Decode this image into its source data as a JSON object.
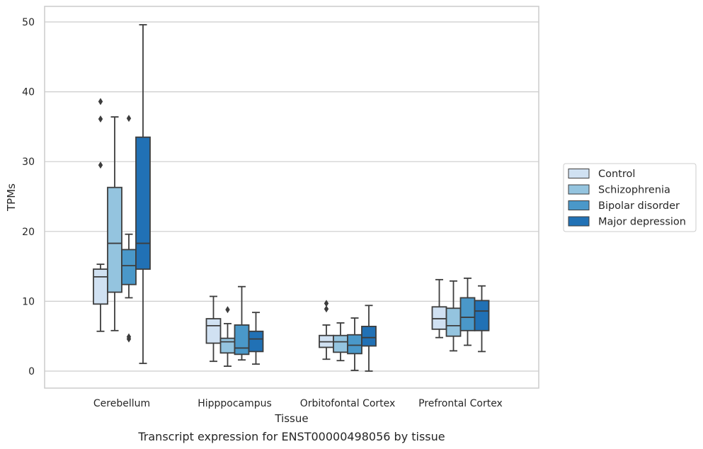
{
  "chart_data": {
    "type": "boxplot",
    "title": "",
    "caption": "Transcript expression for ENST00000498056 by tissue",
    "xlabel": "Tissue",
    "ylabel": "TPMs",
    "ylim": [
      -2.5,
      52.3
    ],
    "yticks": [
      0,
      10,
      20,
      30,
      40,
      50
    ],
    "grid": "horizontal",
    "legend_position": "right",
    "categories": [
      "Cerebellum",
      "Hipppocampus",
      "Orbitofontal Cortex",
      "Prefrontal Cortex"
    ],
    "series": [
      {
        "name": "Control",
        "color": "#d0e1f2",
        "boxes": [
          {
            "whislo": 5.7,
            "q1": 9.6,
            "med": 13.5,
            "q3": 14.6,
            "whishi": 15.3,
            "fliers": []
          },
          {
            "whislo": 1.4,
            "q1": 4.0,
            "med": 6.5,
            "q3": 7.5,
            "whishi": 10.7,
            "fliers": []
          },
          {
            "whislo": 1.7,
            "q1": 3.4,
            "med": 4.2,
            "q3": 5.1,
            "whishi": 6.6,
            "fliers": [
              8.9,
              9.7
            ]
          },
          {
            "whislo": 4.8,
            "q1": 6.0,
            "med": 7.5,
            "q3": 9.2,
            "whishi": 13.1,
            "fliers": []
          }
        ]
      },
      {
        "name": "Schizophrenia",
        "color": "#94c4df",
        "boxes": [
          {
            "whislo": 5.8,
            "q1": 11.3,
            "med": 18.3,
            "q3": 26.3,
            "whishi": 36.4,
            "fliers": []
          },
          {
            "whislo": 0.7,
            "q1": 2.6,
            "med": 4.2,
            "q3": 4.7,
            "whishi": 6.8,
            "fliers": [
              8.8
            ]
          },
          {
            "whislo": 1.5,
            "q1": 2.7,
            "med": 4.2,
            "q3": 5.1,
            "whishi": 6.9,
            "fliers": []
          },
          {
            "whislo": 2.9,
            "q1": 5.0,
            "med": 6.5,
            "q3": 9.0,
            "whishi": 12.9,
            "fliers": []
          }
        ]
      },
      {
        "name": "Bipolar disorder",
        "color": "#4a98c9",
        "boxes": [
          {
            "whislo": 10.5,
            "q1": 12.4,
            "med": 15.1,
            "q3": 17.4,
            "whishi": 19.6,
            "fliers": [
              36.2,
              4.9,
              4.6
            ]
          },
          {
            "whislo": 1.6,
            "q1": 2.4,
            "med": 3.3,
            "q3": 6.6,
            "whishi": 12.1,
            "fliers": []
          },
          {
            "whislo": 0.1,
            "q1": 2.5,
            "med": 3.7,
            "q3": 5.2,
            "whishi": 7.6,
            "fliers": []
          },
          {
            "whislo": 3.7,
            "q1": 5.8,
            "med": 7.7,
            "q3": 10.5,
            "whishi": 13.3,
            "fliers": []
          }
        ]
      },
      {
        "name": "Major depression",
        "color": "#2171b5",
        "boxes": [
          {
            "whislo": 1.1,
            "q1": 14.6,
            "med": 18.3,
            "q3": 33.5,
            "whishi": 49.6,
            "fliers": []
          },
          {
            "whislo": 1.0,
            "q1": 2.8,
            "med": 4.6,
            "q3": 5.7,
            "whishi": 8.4,
            "fliers": []
          },
          {
            "whislo": 0.0,
            "q1": 3.6,
            "med": 4.8,
            "q3": 6.4,
            "whishi": 9.4,
            "fliers": []
          },
          {
            "whislo": 2.8,
            "q1": 5.8,
            "med": 8.6,
            "q3": 10.1,
            "whishi": 12.2,
            "fliers": []
          }
        ]
      }
    ],
    "extra_fliers_cerebellum_control": [
      38.6,
      36.1,
      29.5
    ]
  }
}
